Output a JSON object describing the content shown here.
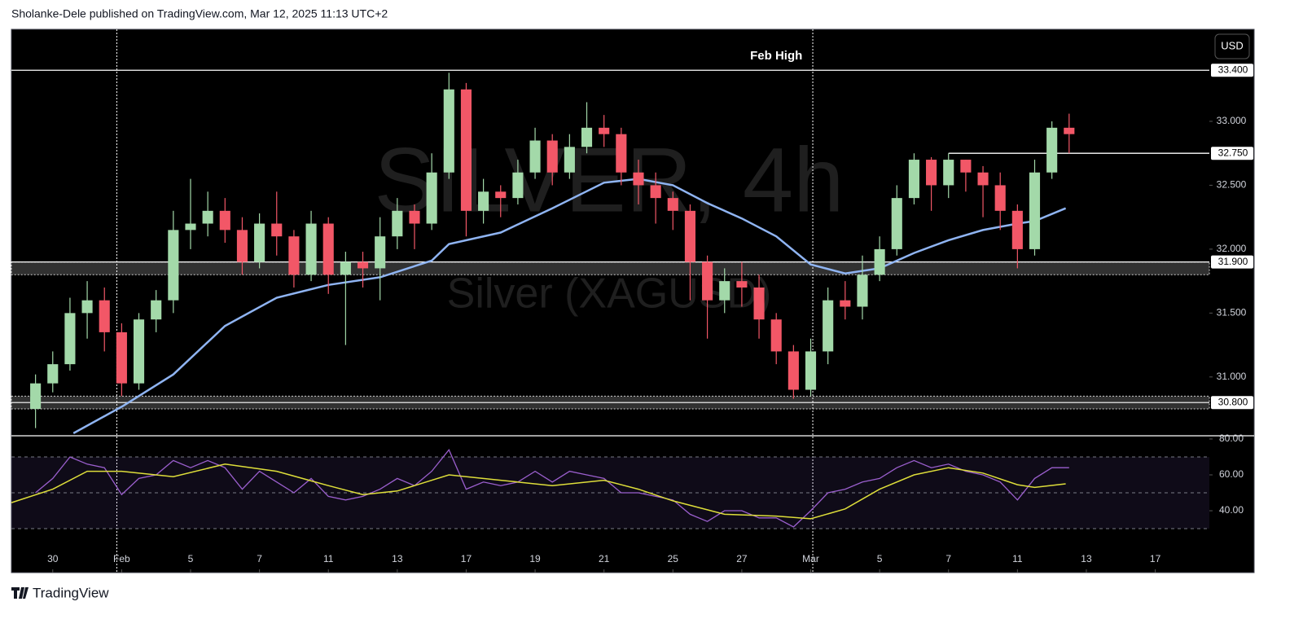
{
  "chart_data": {
    "type": "candlestick",
    "header": "Sholanke-Dele published on TradingView.com, Mar 12, 2025 11:13 UTC+2",
    "currency": "USD",
    "watermark": {
      "symbol": "SILVER, 4h",
      "name": "Silver (XAGUSD)"
    },
    "footer": "TradingView",
    "xlim": [
      -1.2,
      33.57
    ],
    "xticks": [
      {
        "value": 0,
        "label": "30"
      },
      {
        "value": 2,
        "label": "Feb"
      },
      {
        "value": 4,
        "label": "5"
      },
      {
        "value": 6,
        "label": "7"
      },
      {
        "value": 8,
        "label": "11"
      },
      {
        "value": 10,
        "label": "13"
      },
      {
        "value": 12,
        "label": "17"
      },
      {
        "value": 14,
        "label": "19"
      },
      {
        "value": 16,
        "label": "21"
      },
      {
        "value": 18,
        "label": "25"
      },
      {
        "value": 20,
        "label": "27"
      },
      {
        "value": 22,
        "label": "Mar"
      },
      {
        "value": 24,
        "label": "5"
      },
      {
        "value": 26,
        "label": "7"
      },
      {
        "value": 28,
        "label": "11"
      },
      {
        "value": 30,
        "label": "13"
      },
      {
        "value": 32,
        "label": "17"
      }
    ],
    "ylim": [
      30.54,
      33.72
    ],
    "yticks": [
      {
        "value": 31,
        "label": "31.000"
      },
      {
        "value": 31.5,
        "label": "31.500"
      },
      {
        "value": 32,
        "label": "32.000"
      },
      {
        "value": 32.5,
        "label": "32.500"
      },
      {
        "value": 33,
        "label": "33.000"
      }
    ],
    "candles": {
      "up_color": "#a3d9a9",
      "down_color": "#f25767",
      "x": [
        -0.5,
        0,
        0.5,
        1,
        1.5,
        2,
        2.5,
        3,
        3.5,
        4,
        4.5,
        5,
        5.5,
        6,
        6.5,
        7,
        7.5,
        8,
        8.5,
        9,
        9.5,
        10,
        10.5,
        11,
        11.5,
        12,
        12.5,
        13,
        13.5,
        14,
        14.5,
        15,
        15.5,
        16,
        16.5,
        17,
        17.5,
        18,
        18.5,
        19,
        19.5,
        20,
        20.5,
        21,
        21.5,
        22,
        22.5,
        23,
        23.5,
        24,
        24.5,
        25,
        25.5,
        26,
        26.5,
        27,
        27.5,
        28,
        28.5,
        29,
        29.5
      ],
      "open": [
        30.75,
        30.95,
        31.1,
        31.5,
        31.6,
        31.35,
        30.95,
        31.45,
        31.6,
        32.15,
        32.2,
        32.3,
        32.15,
        31.9,
        32.2,
        32.1,
        31.8,
        32.2,
        31.8,
        31.9,
        31.85,
        32.1,
        32.3,
        32.2,
        32.6,
        33.25,
        32.3,
        32.45,
        32.4,
        32.6,
        32.85,
        32.6,
        32.8,
        32.95,
        32.9,
        32.6,
        32.5,
        32.4,
        32.3,
        31.9,
        31.6,
        31.75,
        31.7,
        31.45,
        31.2,
        30.9,
        31.2,
        31.6,
        31.55,
        31.8,
        32.0,
        32.4,
        32.7,
        32.5,
        32.7,
        32.6,
        32.5,
        32.3,
        32.0,
        32.6,
        32.95
      ],
      "high": [
        31.02,
        31.2,
        31.62,
        31.75,
        31.7,
        31.42,
        31.5,
        31.68,
        32.3,
        32.55,
        32.45,
        32.4,
        32.25,
        32.28,
        32.45,
        32.15,
        32.3,
        32.25,
        31.98,
        31.98,
        32.25,
        32.4,
        32.35,
        32.75,
        33.38,
        33.3,
        32.55,
        32.5,
        32.7,
        32.95,
        32.9,
        32.9,
        33.15,
        33.05,
        32.95,
        32.7,
        32.6,
        32.45,
        32.35,
        31.95,
        31.85,
        31.9,
        31.8,
        31.5,
        31.25,
        31.3,
        31.7,
        31.75,
        31.95,
        32.1,
        32.5,
        32.75,
        32.72,
        32.75,
        32.7,
        32.65,
        32.6,
        32.35,
        32.7,
        33.0,
        33.06
      ],
      "low": [
        30.6,
        30.88,
        31.05,
        31.3,
        31.2,
        30.85,
        30.9,
        31.35,
        31.5,
        32.0,
        32.1,
        32.05,
        31.8,
        31.85,
        31.95,
        31.7,
        31.75,
        31.65,
        31.25,
        31.7,
        31.6,
        32.0,
        32.0,
        32.15,
        32.55,
        32.1,
        32.2,
        32.25,
        32.35,
        32.55,
        32.5,
        32.55,
        32.75,
        32.8,
        32.5,
        32.35,
        32.2,
        32.15,
        31.6,
        31.3,
        31.5,
        31.55,
        31.3,
        31.1,
        30.83,
        30.85,
        31.1,
        31.45,
        31.45,
        31.75,
        31.95,
        32.35,
        32.3,
        32.4,
        32.45,
        32.25,
        32.15,
        31.85,
        31.95,
        32.55,
        32.75
      ],
      "close": [
        30.95,
        31.1,
        31.5,
        31.6,
        31.35,
        30.95,
        31.45,
        31.6,
        32.15,
        32.2,
        32.3,
        32.15,
        31.9,
        32.2,
        32.1,
        31.8,
        32.2,
        31.8,
        31.9,
        31.85,
        32.1,
        32.3,
        32.2,
        32.6,
        33.25,
        32.3,
        32.45,
        32.4,
        32.6,
        32.85,
        32.6,
        32.8,
        32.95,
        32.9,
        32.6,
        32.5,
        32.4,
        32.3,
        31.9,
        31.6,
        31.75,
        31.7,
        31.45,
        31.2,
        30.9,
        31.2,
        31.6,
        31.55,
        31.8,
        32.0,
        32.4,
        32.7,
        32.5,
        32.7,
        32.6,
        32.5,
        32.3,
        32.0,
        32.6,
        32.95,
        32.9
      ]
    },
    "ma": {
      "color": "#8fb4f2",
      "x": [
        0.6,
        2.02,
        3.5,
        5,
        6.5,
        8,
        9.5,
        11,
        11.5,
        13,
        14.5,
        16,
        17,
        18,
        19,
        20,
        21,
        22,
        23,
        24,
        25,
        26,
        27,
        28,
        28.5,
        29.4
      ],
      "values": [
        30.56,
        30.77,
        31.02,
        31.4,
        31.62,
        31.72,
        31.78,
        31.91,
        32.04,
        32.13,
        32.32,
        32.52,
        32.55,
        32.5,
        32.36,
        32.24,
        32.1,
        31.88,
        31.81,
        31.85,
        31.97,
        32.07,
        32.15,
        32.2,
        32.22,
        32.32
      ]
    },
    "lines": [
      {
        "value": 33.4,
        "label": "33.400",
        "note": "Feb High"
      },
      {
        "value": 32.75,
        "label": "32.750",
        "from_x": 26
      }
    ],
    "zones": [
      {
        "value": 31.9,
        "low": 31.8,
        "high": 31.9,
        "label": "31.900"
      },
      {
        "value": 30.8,
        "low": 30.75,
        "high": 30.85,
        "label": "30.800"
      }
    ],
    "vlines": [
      1.86,
      22.06
    ],
    "rsi": {
      "ylim": [
        5.5,
        81.8
      ],
      "yticks": [
        {
          "value": 40,
          "label": "40.00"
        },
        {
          "value": 60,
          "label": "60.00"
        },
        {
          "value": 80,
          "label": "80.00"
        }
      ],
      "levels": [
        30,
        50,
        70
      ],
      "color": "#9b5fce",
      "values": [
        50,
        58,
        70,
        66,
        64,
        49,
        58,
        60,
        68,
        64,
        68,
        64,
        52,
        62,
        56,
        50,
        58,
        48,
        46,
        48,
        52,
        58,
        54,
        62,
        74,
        52,
        56,
        54,
        56,
        62,
        56,
        62,
        60,
        58,
        50,
        50,
        48,
        46,
        38,
        34,
        40,
        40,
        36,
        36,
        31,
        40,
        50,
        52,
        56,
        58,
        64,
        68,
        64,
        66,
        62,
        60,
        56,
        46,
        58,
        64,
        64
      ],
      "ma": {
        "color": "#dede3a",
        "x": [
          -1.2,
          0,
          1,
          2,
          3.5,
          5,
          6.5,
          8,
          9,
          10,
          11.5,
          13,
          14.5,
          16,
          17,
          18,
          19.5,
          21,
          22,
          23,
          24,
          25,
          26,
          27,
          28,
          28.5,
          29.4
        ],
        "values": [
          44.5,
          52,
          62,
          62,
          59,
          66,
          62,
          54,
          49,
          51,
          60,
          57,
          54,
          57,
          52,
          45.5,
          38,
          37,
          35.5,
          41,
          52,
          60,
          64,
          61,
          54.5,
          53,
          55
        ]
      }
    }
  }
}
